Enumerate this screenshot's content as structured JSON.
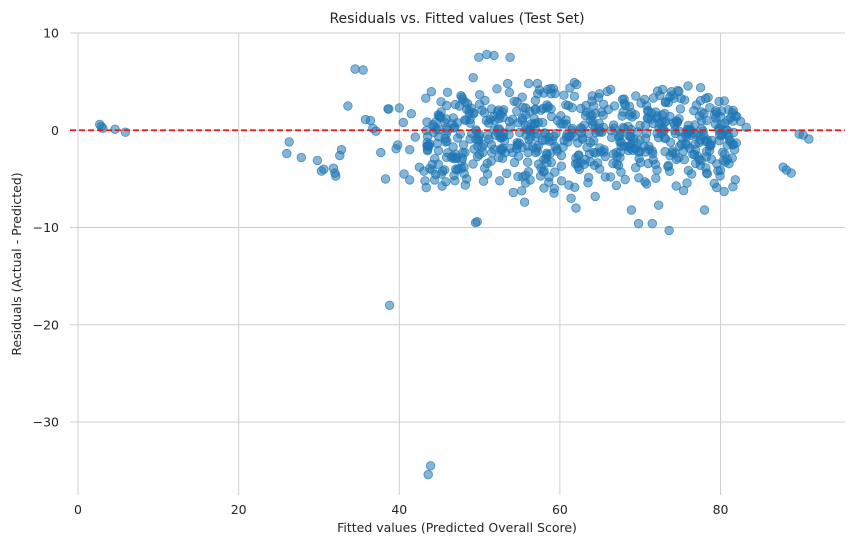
{
  "chart_data": {
    "type": "scatter",
    "title": "Residuals vs. Fitted values (Test Set)",
    "xlabel": "Fitted values (Predicted Overall Score)",
    "ylabel": "Residuals (Actual - Predicted)",
    "xlim": [
      -1,
      95.5
    ],
    "ylim": [
      -37.5,
      10
    ],
    "x_ticks": [
      0,
      20,
      40,
      60,
      80
    ],
    "x_tick_labels": [
      "0",
      "20",
      "40",
      "60",
      "80"
    ],
    "y_ticks": [
      10,
      0,
      -10,
      -20,
      -30
    ],
    "y_tick_labels": [
      "10",
      "0",
      "−10",
      "−20",
      "−30"
    ],
    "grid": true,
    "reference_line": {
      "y": 0,
      "color": "#e31a1c",
      "style": "dashed"
    },
    "marker_color": "#1f77b4",
    "marker_alpha": 0.55,
    "points": [
      [
        2.7,
        0.6
      ],
      [
        2.9,
        0.4
      ],
      [
        3.1,
        0.2
      ],
      [
        4.6,
        0.1
      ],
      [
        5.9,
        -0.2
      ],
      [
        26.0,
        -2.4
      ],
      [
        26.3,
        -1.2
      ],
      [
        27.8,
        -2.8
      ],
      [
        29.8,
        -3.1
      ],
      [
        30.3,
        -4.2
      ],
      [
        30.6,
        -4.0
      ],
      [
        31.8,
        -3.9
      ],
      [
        32.0,
        -4.4
      ],
      [
        32.1,
        -4.7
      ],
      [
        32.6,
        -2.6
      ],
      [
        32.8,
        -2.0
      ],
      [
        33.6,
        2.5
      ],
      [
        34.5,
        6.3
      ],
      [
        35.5,
        6.2
      ],
      [
        35.8,
        1.1
      ],
      [
        36.4,
        1.0
      ],
      [
        36.7,
        0.2
      ],
      [
        37.1,
        -0.1
      ],
      [
        37.7,
        -2.3
      ],
      [
        38.3,
        -5.0
      ],
      [
        38.6,
        2.2
      ],
      [
        38.7,
        2.2
      ],
      [
        38.8,
        -18.0
      ],
      [
        39.6,
        -1.9
      ],
      [
        39.8,
        -1.5
      ],
      [
        40.0,
        2.3
      ],
      [
        40.5,
        0.8
      ],
      [
        40.6,
        -4.5
      ],
      [
        41.3,
        -5.1
      ],
      [
        41.3,
        -2.0
      ],
      [
        41.5,
        1.7
      ],
      [
        42.0,
        -0.7
      ],
      [
        42.5,
        -3.8
      ],
      [
        43.2,
        -5.2
      ],
      [
        43.3,
        3.3
      ],
      [
        43.5,
        -1.6
      ],
      [
        43.6,
        -35.4
      ],
      [
        43.9,
        -34.5
      ],
      [
        44.1,
        -3.5
      ],
      [
        44.4,
        -5.1
      ],
      [
        45.0,
        1.5
      ],
      [
        45.4,
        -4.2
      ],
      [
        45.8,
        -5.3
      ],
      [
        46.0,
        3.9
      ],
      [
        46.5,
        -2.8
      ],
      [
        47.2,
        -4.1
      ],
      [
        47.8,
        3.4
      ],
      [
        48.0,
        -1.5
      ],
      [
        48.4,
        -5.0
      ],
      [
        48.7,
        2.0
      ],
      [
        49.2,
        5.4
      ],
      [
        49.5,
        -9.5
      ],
      [
        49.7,
        -9.4
      ],
      [
        49.9,
        7.5
      ],
      [
        50.6,
        1.8
      ],
      [
        50.9,
        7.8
      ],
      [
        51.0,
        -4.5
      ],
      [
        51.5,
        2.2
      ],
      [
        51.8,
        7.7
      ],
      [
        52.0,
        -0.5
      ],
      [
        52.5,
        -5.2
      ],
      [
        53.0,
        2.1
      ],
      [
        53.5,
        4.8
      ],
      [
        53.8,
        7.5
      ],
      [
        54.2,
        -6.4
      ],
      [
        54.7,
        -1.5
      ],
      [
        55.3,
        3.4
      ],
      [
        55.6,
        -7.4
      ],
      [
        56.1,
        4.8
      ],
      [
        56.3,
        -5.1
      ],
      [
        56.8,
        1.2
      ],
      [
        57.2,
        4.8
      ],
      [
        57.6,
        -4.7
      ],
      [
        58.0,
        -3.0
      ],
      [
        58.4,
        2.6
      ],
      [
        58.9,
        2.2
      ],
      [
        59.3,
        -6.0
      ],
      [
        59.7,
        1.0
      ],
      [
        60.2,
        -5.2
      ],
      [
        60.5,
        3.6
      ],
      [
        61.0,
        -1.2
      ],
      [
        61.4,
        -7.0
      ],
      [
        61.8,
        4.9
      ],
      [
        62.0,
        -8.0
      ],
      [
        62.1,
        4.7
      ],
      [
        62.6,
        -3.3
      ],
      [
        63.2,
        1.5
      ],
      [
        63.5,
        -5.4
      ],
      [
        64.0,
        3.0
      ],
      [
        64.4,
        -6.8
      ],
      [
        64.9,
        0.7
      ],
      [
        65.5,
        -2.0
      ],
      [
        65.9,
        4.0
      ],
      [
        66.3,
        -4.8
      ],
      [
        66.8,
        2.5
      ],
      [
        67.3,
        -0.7
      ],
      [
        67.6,
        -4.3
      ],
      [
        68.0,
        3.2
      ],
      [
        68.5,
        0.4
      ],
      [
        68.9,
        -8.2
      ],
      [
        69.4,
        -1.9
      ],
      [
        69.8,
        -9.6
      ],
      [
        70.1,
        2.8
      ],
      [
        70.6,
        -5.3
      ],
      [
        71.0,
        1.2
      ],
      [
        71.5,
        -9.6
      ],
      [
        71.9,
        -3.5
      ],
      [
        72.3,
        -7.7
      ],
      [
        72.8,
        4.2
      ],
      [
        73.0,
        0.8
      ],
      [
        73.6,
        -10.3
      ],
      [
        74.0,
        3.6
      ],
      [
        74.5,
        -3.0
      ],
      [
        75.0,
        2.2
      ],
      [
        75.4,
        -6.2
      ],
      [
        76.0,
        0.5
      ],
      [
        76.4,
        -4.5
      ],
      [
        77.0,
        2.6
      ],
      [
        77.5,
        -3.6
      ],
      [
        78.0,
        -8.2
      ],
      [
        78.3,
        1.0
      ],
      [
        78.8,
        -1.5
      ],
      [
        79.4,
        2.0
      ],
      [
        80.0,
        1.4
      ],
      [
        80.5,
        0.7
      ],
      [
        81.0,
        2.1
      ],
      [
        81.5,
        1.8
      ],
      [
        82.0,
        1.4
      ],
      [
        82.5,
        0.9
      ],
      [
        83.2,
        0.3
      ],
      [
        87.8,
        -3.8
      ],
      [
        88.2,
        -4.1
      ],
      [
        88.8,
        -4.4
      ],
      [
        89.8,
        -0.4
      ],
      [
        90.3,
        -0.5
      ],
      [
        91.0,
        -0.9
      ]
    ]
  }
}
